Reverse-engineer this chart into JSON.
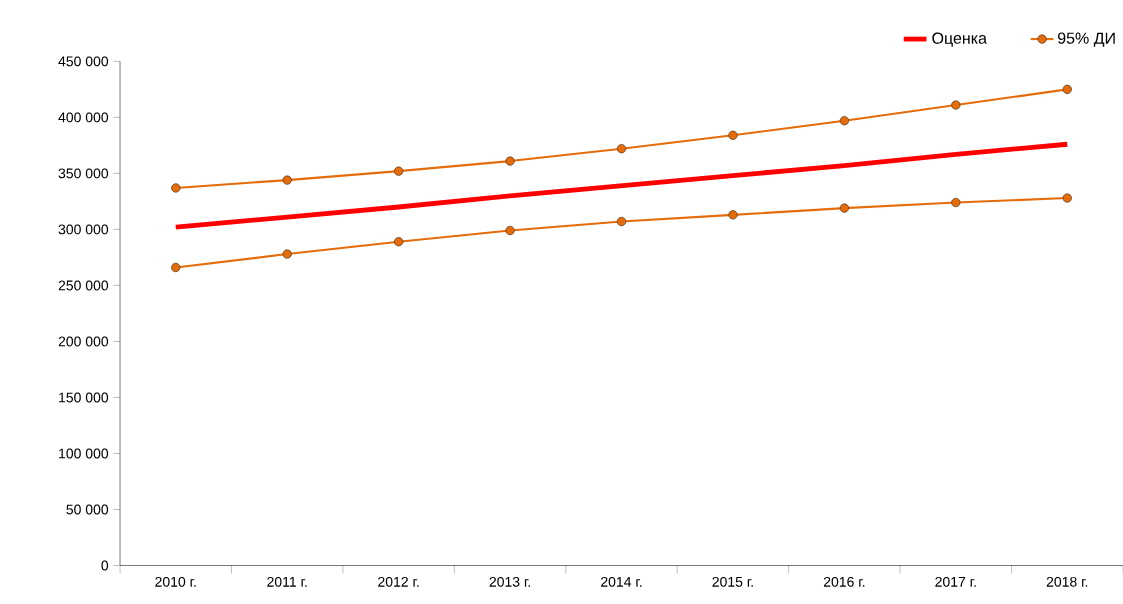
{
  "chart_data": {
    "type": "line",
    "categories": [
      "2010 г.",
      "2011 г.",
      "2012 г.",
      "2013 г.",
      "2014 г.",
      "2015 г.",
      "2016 г.",
      "2017 г.",
      "2018 г."
    ],
    "series": [
      {
        "name": "Оценка",
        "color": "#ff0000",
        "marker": "none",
        "values": [
          302000,
          311000,
          320000,
          330000,
          339000,
          348000,
          357000,
          367000,
          376000
        ]
      },
      {
        "name": "95% ДИ",
        "color": "#e46c0a",
        "marker": "circle",
        "values": [
          337000,
          344000,
          352000,
          361000,
          372000,
          384000,
          397000,
          411000,
          425000
        ]
      },
      {
        "color": "#e46c0a",
        "marker": "circle",
        "values": [
          266000,
          278000,
          289000,
          299000,
          307000,
          313000,
          319000,
          324000,
          328000
        ]
      }
    ],
    "ylim": [
      0,
      450000
    ],
    "yticks": [
      {
        "value": 0,
        "label": "0"
      },
      {
        "value": 50000,
        "label": "50 000"
      },
      {
        "value": 100000,
        "label": "100 000"
      },
      {
        "value": 150000,
        "label": "150 000"
      },
      {
        "value": 200000,
        "label": "200 000"
      },
      {
        "value": 250000,
        "label": "250 000"
      },
      {
        "value": 300000,
        "label": "300 000"
      },
      {
        "value": 350000,
        "label": "350 000"
      },
      {
        "value": 400000,
        "label": "400 000"
      },
      {
        "value": 450000,
        "label": "450 000"
      }
    ],
    "grid": false,
    "legend": "top right",
    "line_style": "solid"
  }
}
